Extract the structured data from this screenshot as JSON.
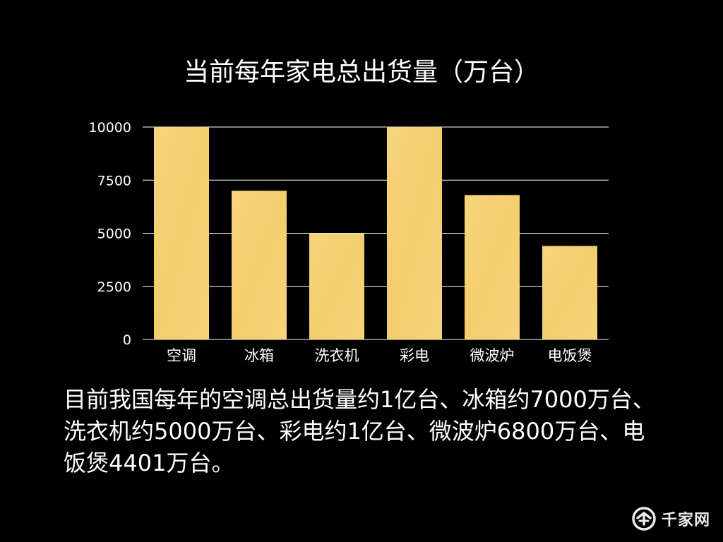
{
  "slide": {
    "title": "当前每年家电总出货量（万台）",
    "body": "目前我国每年的空调总出货量约1亿台、冰箱约7000万台、洗衣机约5000万台、彩电约1亿台、微波炉6800万台、电饭煲4401万台。"
  },
  "watermark": {
    "text": "千家网",
    "icon": "qianjia-logo-icon"
  },
  "colors": {
    "background": "#000000",
    "bar": "#F6D47A",
    "grid": "#FFFFFF",
    "text": "#FFFFFF"
  },
  "chart_data": {
    "type": "bar",
    "title": "当前每年家电总出货量（万台）",
    "categories": [
      "空调",
      "冰箱",
      "洗衣机",
      "彩电",
      "微波炉",
      "电饭煲"
    ],
    "values": [
      10000,
      7000,
      5000,
      10000,
      6800,
      4401
    ],
    "yticks": [
      "0",
      "2500",
      "5000",
      "7500",
      "10000"
    ],
    "ytick_values": [
      0,
      2500,
      5000,
      7500,
      10000
    ],
    "ylim": [
      0,
      10000
    ],
    "xlabel": "",
    "ylabel": "",
    "grid": true,
    "legend": "none"
  }
}
